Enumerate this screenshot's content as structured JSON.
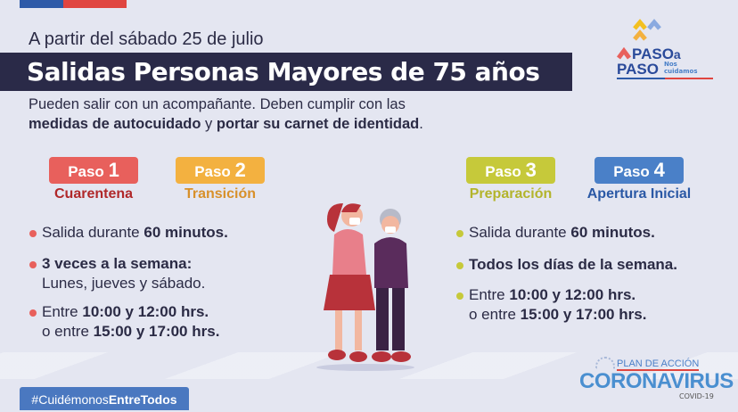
{
  "header": {
    "date_line": "A partir del sábado 25 de julio",
    "title": "Salidas Personas Mayores de 75 años",
    "desc_line1": "Pueden salir con un acompañante. Deben cumplir con las",
    "desc_bold1": "medidas de autocuidado",
    "desc_and": " y ",
    "desc_bold2": "portar su carnet de identidad",
    "desc_end": "."
  },
  "logo": {
    "line1": "PASO",
    "a": "a",
    "line2": "PASO",
    "tagline_1": "Nos",
    "tagline_2": "cuidamos"
  },
  "steps": [
    {
      "word": "Paso",
      "num": "1",
      "label": "Cuarentena",
      "color": "#e8605c",
      "label_color": "#b0282a"
    },
    {
      "word": "Paso",
      "num": "2",
      "label": "Transición",
      "color": "#f3b140",
      "label_color": "#d8902a"
    },
    {
      "word": "Paso",
      "num": "3",
      "label": "Preparación",
      "color": "#c6c93a",
      "label_color": "#b3b42c"
    },
    {
      "word": "Paso",
      "num": "4",
      "label": "Apertura Inicial",
      "color": "#4a80c8",
      "label_color": "#2a58a5"
    }
  ],
  "left_rules": {
    "r1_pre": "Salida durante ",
    "r1_bold": "60 minutos.",
    "r2_bold": "3 veces a la semana:",
    "r2_rest": "Lunes, jueves y sábado.",
    "r3_pre": "Entre ",
    "r3_b1": "10:00 y 12:00 hrs.",
    "r3_mid": "o entre ",
    "r3_b2": "15:00 y 17:00 hrs."
  },
  "right_rules": {
    "r1_pre": "Salida durante ",
    "r1_bold": "60 minutos.",
    "r2_bold": "Todos los días de la semana.",
    "r3_pre": "Entre ",
    "r3_b1": "10:00 y 12:00 hrs.",
    "r3_mid": "o entre ",
    "r3_b2": "15:00 y 17:00 hrs."
  },
  "footer": {
    "hashtag_pre": "#Cuidémonos",
    "hashtag_bold": "EntreTodos",
    "plan": "PLAN DE ACCIÓN",
    "corona": "CORONAVIRUS",
    "covid": "COVID-19"
  }
}
